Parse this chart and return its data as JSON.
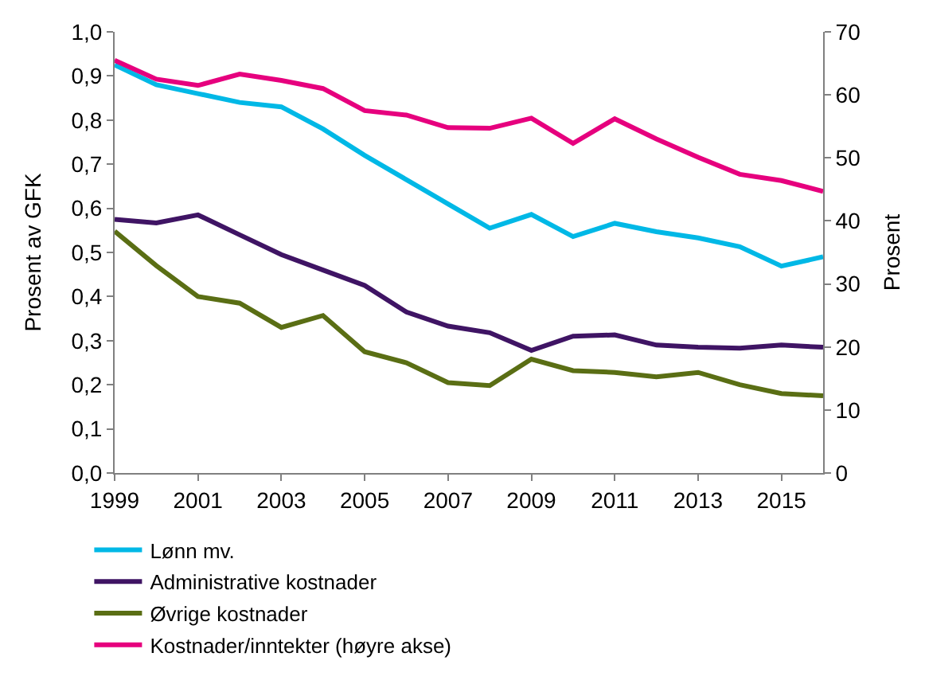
{
  "chart_data": {
    "type": "line",
    "ylabel": "Prosent av GFK",
    "y2label": "Prosent",
    "x": [
      1999,
      2000,
      2001,
      2002,
      2003,
      2004,
      2005,
      2006,
      2007,
      2008,
      2009,
      2010,
      2011,
      2012,
      2013,
      2014,
      2015,
      2016
    ],
    "xlim": [
      1999,
      2016
    ],
    "xticks": [
      1999,
      2001,
      2003,
      2005,
      2007,
      2009,
      2011,
      2013,
      2015
    ],
    "ylim": [
      0,
      1
    ],
    "yticks": [
      {
        "value": 0,
        "label": "0,0"
      },
      {
        "value": 0.1,
        "label": "0,1"
      },
      {
        "value": 0.2,
        "label": "0,2"
      },
      {
        "value": 0.3,
        "label": "0,3"
      },
      {
        "value": 0.4,
        "label": "0,4"
      },
      {
        "value": 0.5,
        "label": "0,5"
      },
      {
        "value": 0.6,
        "label": "0,6"
      },
      {
        "value": 0.7,
        "label": "0,7"
      },
      {
        "value": 0.8,
        "label": "0,8"
      },
      {
        "value": 0.9,
        "label": "0,9"
      },
      {
        "value": 1,
        "label": "1,0"
      }
    ],
    "y2lim": [
      0,
      70
    ],
    "y2ticks": [
      0,
      10,
      20,
      30,
      40,
      50,
      60,
      70
    ],
    "grid": false,
    "legend": "bottom",
    "marker": "none",
    "line_style": "solid",
    "series": [
      {
        "name": "Lønn mv.",
        "color": "#00b8e6",
        "values": [
          0.925,
          0.88,
          0.86,
          0.84,
          0.83,
          0.78,
          0.72,
          0.665,
          0.61,
          0.555,
          0.586,
          0.536,
          0.566,
          0.547,
          0.533,
          0.513,
          0.469,
          0.49
        ]
      },
      {
        "name": "Administrative kostnader",
        "color": "#3f1464",
        "values": [
          0.575,
          0.567,
          0.585,
          0.54,
          0.495,
          0.46,
          0.425,
          0.365,
          0.333,
          0.318,
          0.278,
          0.31,
          0.313,
          0.29,
          0.285,
          0.283,
          0.29,
          0.285
        ]
      },
      {
        "name": "Øvrige kostnader",
        "color": "#5a6e14",
        "values": [
          0.548,
          0.47,
          0.4,
          0.385,
          0.33,
          0.357,
          0.275,
          0.25,
          0.205,
          0.198,
          0.258,
          0.232,
          0.228,
          0.218,
          0.228,
          0.2,
          0.18,
          0.175
        ]
      },
      {
        "name": "Kostnader/inntekter (høyre akse)",
        "color": "#e6007e",
        "axis": "y2",
        "values": [
          65.5,
          62.5,
          61.5,
          63.3,
          62.3,
          61.0,
          57.5,
          56.8,
          54.8,
          54.7,
          56.3,
          52.3,
          56.2,
          53.0,
          50.1,
          47.4,
          46.4,
          44.7
        ]
      }
    ]
  }
}
